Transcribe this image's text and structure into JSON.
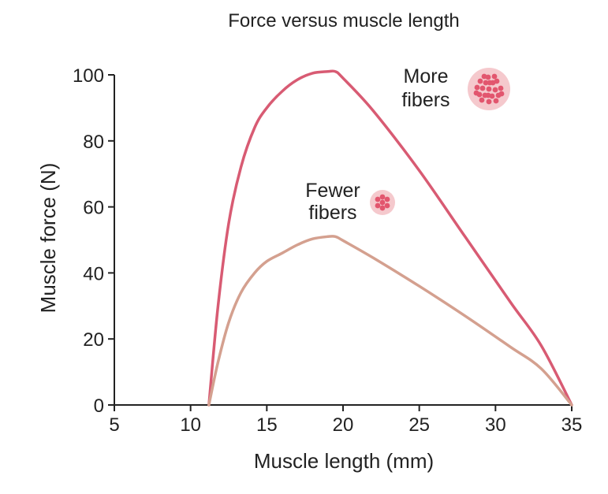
{
  "chart_data": {
    "type": "line",
    "title": "Force versus muscle length",
    "xlabel": "Muscle length (mm)",
    "ylabel": "Muscle force (N)",
    "xlim": [
      5,
      35
    ],
    "ylim": [
      0,
      100
    ],
    "xticks": [
      "5",
      "10",
      "15",
      "20",
      "25",
      "30",
      "35"
    ],
    "yticks": [
      "0",
      "20",
      "40",
      "60",
      "80",
      "100"
    ],
    "grid": false,
    "series": [
      {
        "key": "more",
        "color": "#d85b73",
        "x": [
          11.2,
          11.8,
          12.5,
          13.3,
          14.2,
          15.0,
          16.0,
          17.0,
          18.0,
          19.0,
          19.5,
          20.0,
          22.0,
          25.0,
          28.0,
          31.0,
          33.0,
          35.0
        ],
        "y": [
          0,
          30,
          55,
          72,
          84,
          90,
          95,
          98.5,
          100.5,
          101,
          101,
          99,
          89,
          71,
          51,
          31,
          18,
          0
        ]
      },
      {
        "key": "fewer",
        "color": "#d4a08f",
        "x": [
          11.2,
          11.8,
          12.5,
          13.3,
          14.2,
          15.0,
          16.0,
          17.0,
          18.0,
          19.0,
          19.5,
          20.0,
          22.0,
          25.0,
          28.0,
          31.0,
          33.0,
          35.0
        ],
        "y": [
          0,
          13,
          25,
          34,
          40,
          43.5,
          46,
          48.5,
          50.3,
          51,
          51,
          49.8,
          44.5,
          36,
          27,
          17.5,
          11,
          0
        ]
      }
    ],
    "annotations": {
      "more": {
        "line1": "More",
        "line2": "fibers",
        "icon": "muscle-bundle-many-fibers-icon"
      },
      "fewer": {
        "line1": "Fewer",
        "line2": "fibers",
        "icon": "muscle-bundle-few-fibers-icon"
      }
    },
    "colors": {
      "bundle_bg": "#f5c9cd",
      "fiber": "#e2566e",
      "axis": "#222222"
    }
  }
}
